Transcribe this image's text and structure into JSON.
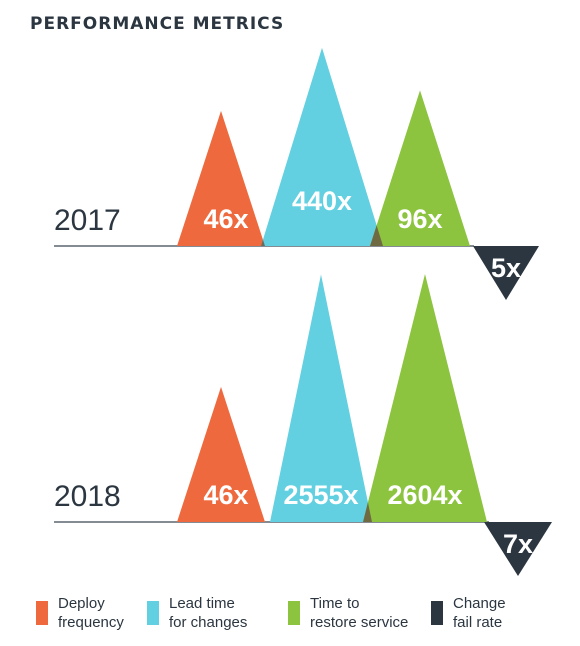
{
  "title": "PERFORMANCE METRICS",
  "colors": {
    "deploy": "#ee6a3e",
    "lead": "#62d0e0",
    "restore": "#8cc43f",
    "change": "#2b3640",
    "baseline": "#3b4650",
    "year_text": "#2b3640"
  },
  "legend": [
    {
      "line1": "Deploy",
      "line2": "frequency",
      "color": "#ee6a3e"
    },
    {
      "line1": "Lead time",
      "line2": "for changes",
      "color": "#62d0e0"
    },
    {
      "line1": "Time to",
      "line2": "restore service",
      "color": "#8cc43f"
    },
    {
      "line1": "Change",
      "line2": "fail rate",
      "color": "#2b3640"
    }
  ],
  "chart_data": {
    "type": "bar",
    "title": "PERFORMANCE METRICS",
    "categories": [
      "Deploy frequency",
      "Lead time for changes",
      "Time to restore service",
      "Change fail rate"
    ],
    "series": [
      {
        "name": "2017",
        "values": [
          46,
          440,
          96,
          5
        ],
        "labels": [
          "46x",
          "440x",
          "96x",
          "5x"
        ]
      },
      {
        "name": "2018",
        "values": [
          46,
          2555,
          2604,
          7
        ],
        "labels": [
          "46x",
          "2555x",
          "2604x",
          "7x"
        ]
      }
    ],
    "note": "Change fail rate is drawn as a downward triangle below the baseline",
    "legend_position": "bottom"
  }
}
